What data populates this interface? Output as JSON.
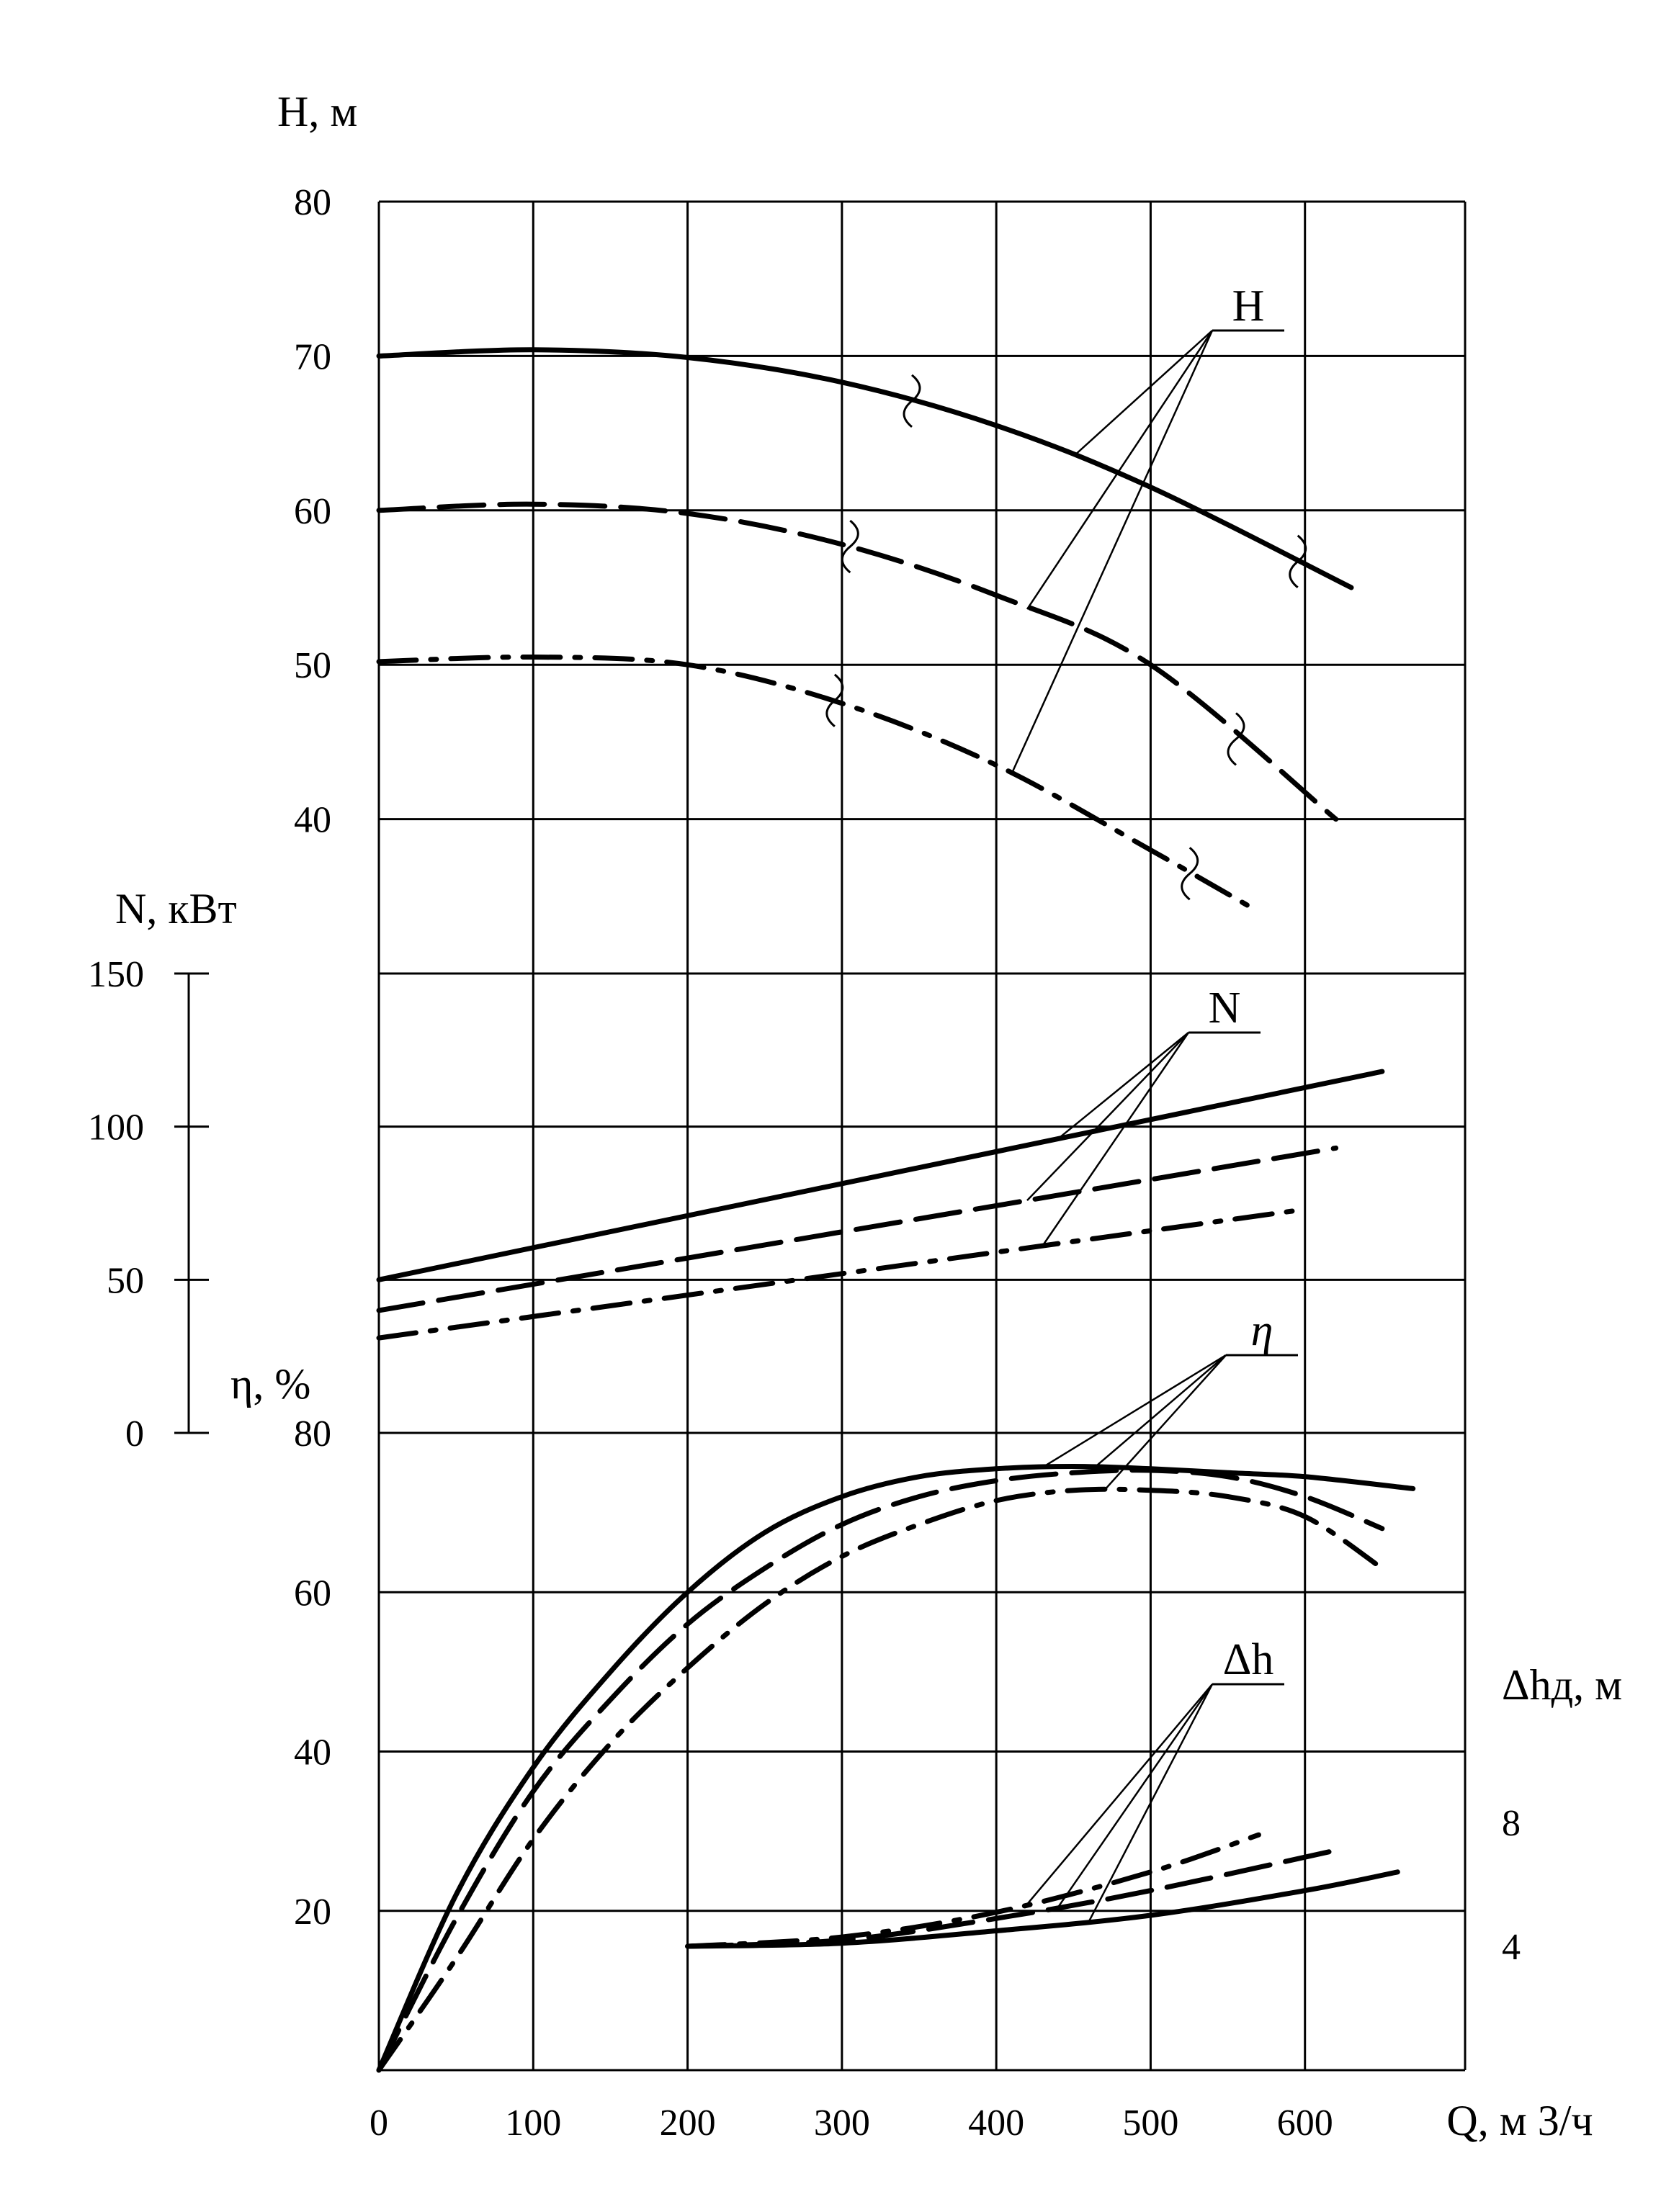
{
  "chart_data": {
    "type": "line",
    "x_axis": {
      "label": "Q, м 3/ч",
      "ticks": [
        0,
        100,
        200,
        300,
        400,
        500,
        600
      ],
      "range": [
        0,
        700
      ]
    },
    "grid": true,
    "panels": [
      {
        "id": "head",
        "axis_label": "H, м",
        "ylim": [
          30,
          80
        ],
        "ticks": [
          40,
          50,
          60,
          70,
          80
        ],
        "series_label": "H",
        "series": [
          {
            "style": "solid",
            "x": [
              0,
              100,
              200,
              300,
              400,
              500,
              630
            ],
            "y": [
              70,
              70.4,
              69.9,
              68.3,
              65.5,
              61.5,
              55
            ]
          },
          {
            "style": "dashed",
            "x": [
              0,
              100,
              200,
              300,
              400,
              500,
              620
            ],
            "y": [
              60,
              60.4,
              59.8,
              57.8,
              54.5,
              50,
              40
            ]
          },
          {
            "style": "dash-dot",
            "x": [
              0,
              100,
              200,
              300,
              400,
              500,
              570
            ],
            "y": [
              50.2,
              50.5,
              50,
              47.5,
              43.5,
              38,
              34
            ]
          }
        ]
      },
      {
        "id": "power",
        "axis_label": "N, кВт",
        "ylim": [
          0,
          150
        ],
        "ticks": [
          0,
          50,
          100,
          150
        ],
        "series_label": "N",
        "series": [
          {
            "style": "solid",
            "x": [
              0,
              650
            ],
            "y": [
              50,
              118
            ]
          },
          {
            "style": "dashed",
            "x": [
              0,
              620
            ],
            "y": [
              40,
              93
            ]
          },
          {
            "style": "dash-dot",
            "x": [
              0,
              600
            ],
            "y": [
              31,
              73
            ]
          }
        ]
      },
      {
        "id": "efficiency",
        "axis_label": "η, %",
        "ylim": [
          0,
          80
        ],
        "ticks": [
          20,
          40,
          60,
          80
        ],
        "series_label": "η",
        "series": [
          {
            "style": "solid",
            "x": [
              0,
              50,
              100,
              150,
              200,
              250,
              300,
              350,
              400,
              450,
              500,
              550,
              600,
              670
            ],
            "y": [
              0,
              22,
              38,
              50,
              60,
              67.5,
              72,
              74.5,
              75.5,
              75.8,
              75.5,
              75,
              74.5,
              73
            ]
          },
          {
            "style": "dashed",
            "x": [
              0,
              50,
              100,
              150,
              200,
              250,
              300,
              350,
              400,
              450,
              500,
              550,
              600,
              650
            ],
            "y": [
              0,
              19,
              35,
              46.5,
              56,
              63,
              68.5,
              72,
              74,
              75,
              75.3,
              74.5,
              72,
              68
            ]
          },
          {
            "style": "dash-dot",
            "x": [
              0,
              50,
              100,
              150,
              200,
              250,
              300,
              350,
              400,
              450,
              500,
              550,
              600,
              650
            ],
            "y": [
              0,
              14,
              29,
              41,
              50.5,
              58.5,
              64.5,
              68.5,
              71.5,
              72.8,
              72.8,
              72,
              69.5,
              63
            ]
          }
        ]
      },
      {
        "id": "npsh",
        "axis_label": "Δhд, м",
        "ylim": [
          0,
          10
        ],
        "ticks": [
          4,
          8
        ],
        "series_label": "Δh",
        "series": [
          {
            "style": "solid",
            "x": [
              200,
              300,
              400,
              500,
              600,
              660
            ],
            "y": [
              4,
              4.1,
              4.5,
              5,
              5.8,
              6.4
            ]
          },
          {
            "style": "dashed",
            "x": [
              200,
              300,
              400,
              500,
              620
            ],
            "y": [
              4,
              4.2,
              4.9,
              5.8,
              7.1
            ]
          },
          {
            "style": "dash-dot",
            "x": [
              200,
              300,
              400,
              500,
              570
            ],
            "y": [
              4,
              4.3,
              5.1,
              6.4,
              7.6
            ]
          }
        ]
      }
    ]
  }
}
